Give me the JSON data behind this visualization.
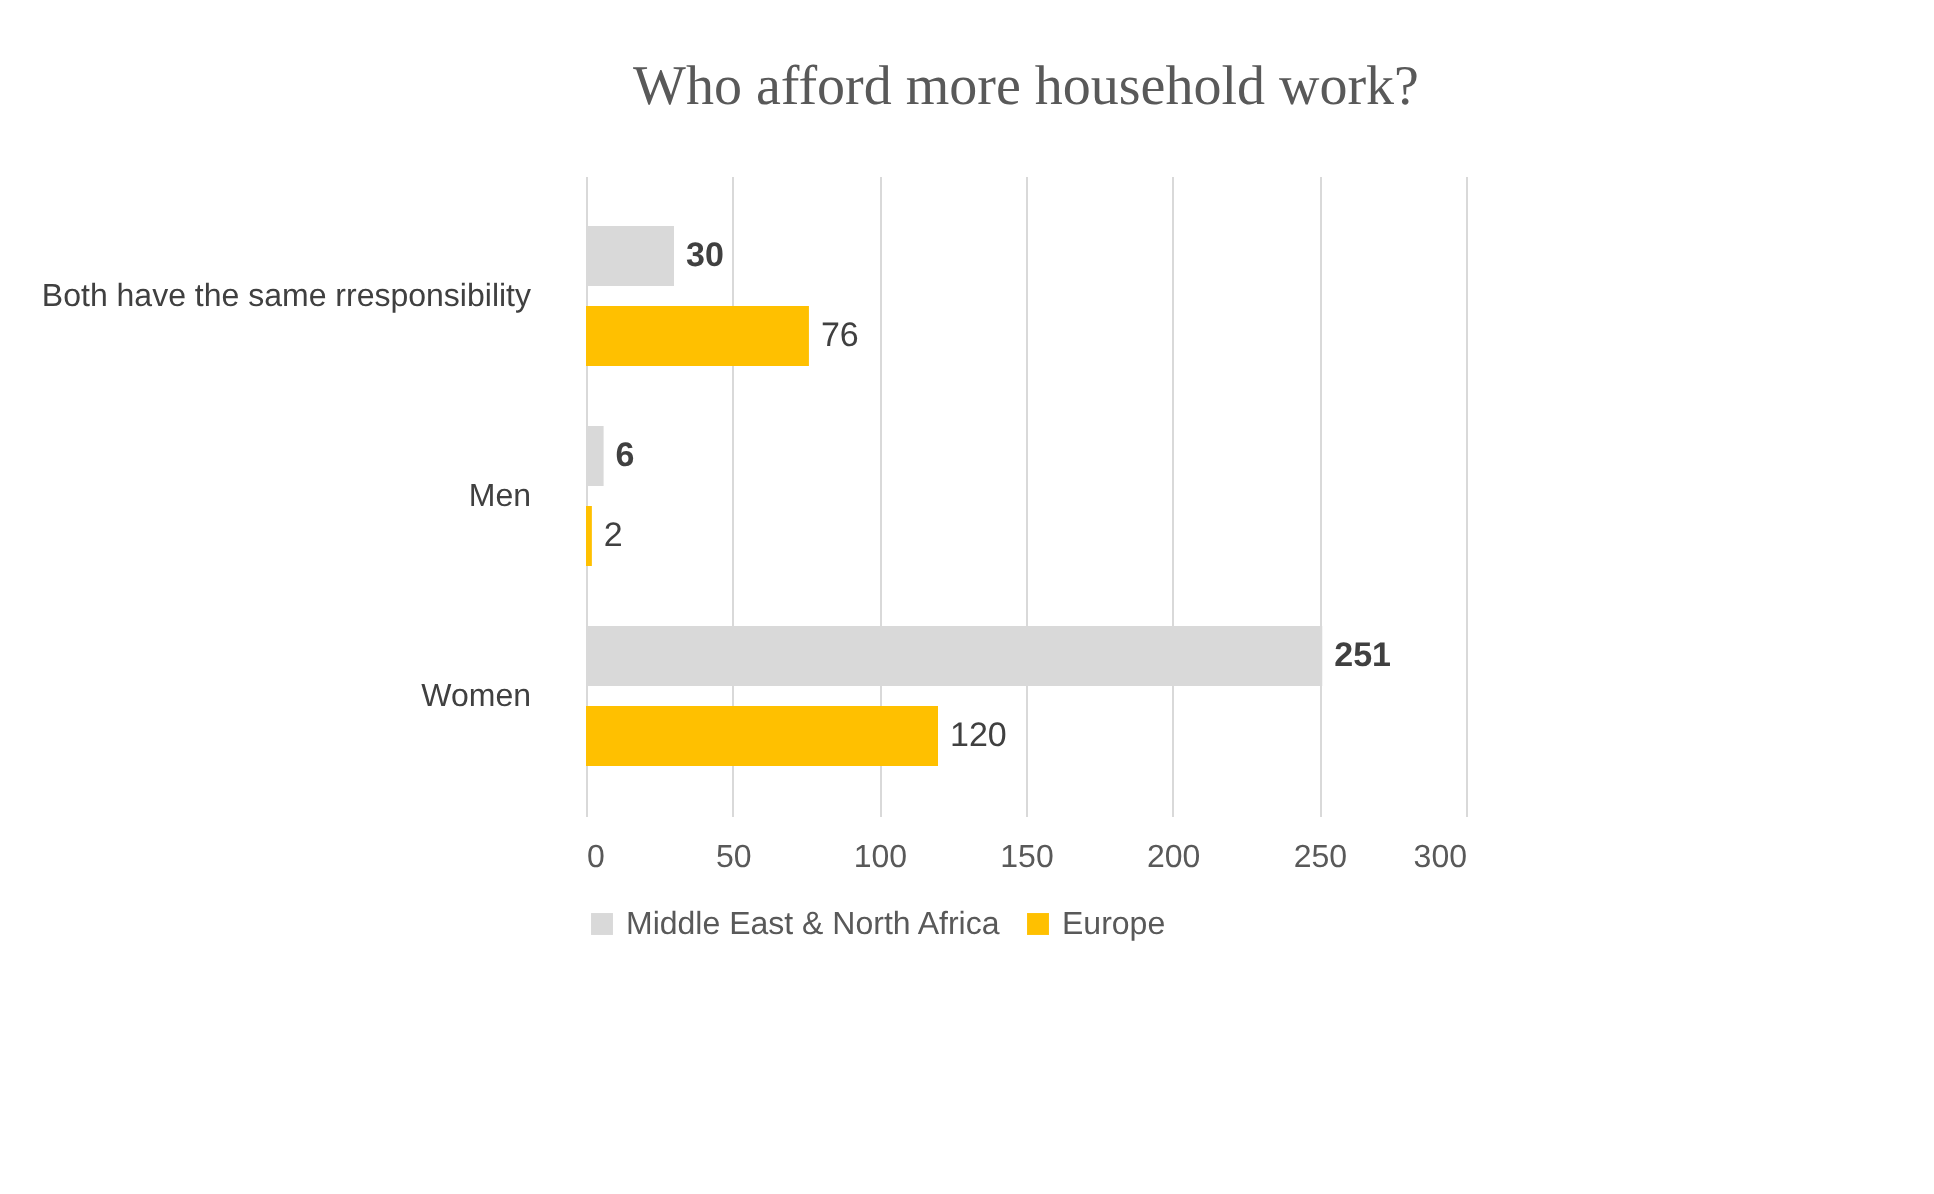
{
  "chart_data": {
    "type": "bar",
    "orientation": "horizontal",
    "title": "Who afford more household work?",
    "categories": [
      "Both have the same rresponsibility",
      "Men",
      "Women"
    ],
    "series": [
      {
        "name": "Middle East & North Africa",
        "color": "#d9d9d9",
        "values": [
          30,
          6,
          251
        ]
      },
      {
        "name": "Europe",
        "color": "#ffc000",
        "values": [
          76,
          2,
          120
        ]
      }
    ],
    "xlim": [
      0,
      300
    ],
    "xticks": [
      0,
      50,
      100,
      150,
      200,
      250,
      300
    ],
    "grid": "x",
    "legend": "bottom",
    "data_labels": true
  }
}
